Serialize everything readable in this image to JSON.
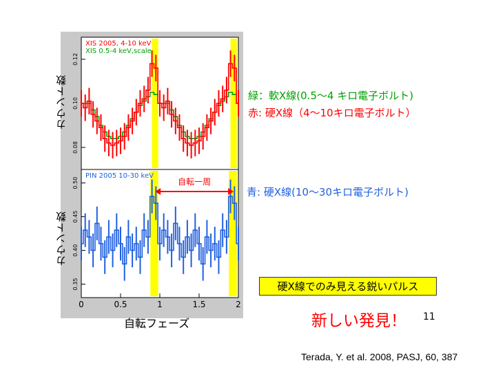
{
  "slide": {
    "ylabel_top": "カウント数",
    "ylabel_bottom": "カウント数",
    "xlabel": "自転フェーズ",
    "annotation_green": "緑：軟X線(0.5～4 キロ電子ボルト)",
    "annotation_red": "赤:  硬X線（4～10キロ電子ボルト）",
    "annotation_blue": "青:  硬X線(10～30キロ電子ボルト)",
    "rotation_label": "自転一周",
    "pulse_box": "硬X線でのみ見える鋭いパルス",
    "discovery": "新しい発見！",
    "page_number": "11",
    "citation": "Terada, Y. et al. 2008, PASJ, 60, 387"
  },
  "colors": {
    "green": "#00a000",
    "red": "#ff0000",
    "blue": "#1f5fe0",
    "highlight": "#ffff00",
    "panel_bg": "#c9c9c9"
  },
  "chart_data": [
    {
      "type": "line",
      "legend": [
        "XIS 2005, 4-10 keV",
        "XIS 0.5-4 keV,scale"
      ],
      "legend_colors": [
        "#ff0000",
        "#00a000"
      ],
      "yticks": [
        "0.12",
        "0.10",
        "0.08"
      ],
      "ylim": [
        0.07,
        0.13
      ],
      "xlim": [
        0,
        2
      ],
      "highlight_phases": [
        [
          0.9,
          0.98
        ],
        [
          1.9,
          1.98
        ]
      ],
      "series": [
        {
          "color": "#00a000",
          "x": [
            0,
            0.05,
            0.1,
            0.15,
            0.2,
            0.25,
            0.3,
            0.35,
            0.4,
            0.45,
            0.5,
            0.55,
            0.6,
            0.65,
            0.7,
            0.75,
            0.8,
            0.85,
            0.9,
            0.95,
            1.0,
            1.05,
            1.1,
            1.15,
            1.2,
            1.25,
            1.3,
            1.35,
            1.4,
            1.45,
            1.5,
            1.55,
            1.6,
            1.65,
            1.7,
            1.75,
            1.8,
            1.85,
            1.9,
            1.95,
            2.0
          ],
          "y": [
            0.1,
            0.1,
            0.1,
            0.097,
            0.094,
            0.09,
            0.087,
            0.085,
            0.084,
            0.084,
            0.085,
            0.087,
            0.09,
            0.093,
            0.096,
            0.099,
            0.101,
            0.103,
            0.105,
            0.104,
            0.1,
            0.1,
            0.1,
            0.097,
            0.094,
            0.09,
            0.087,
            0.085,
            0.084,
            0.084,
            0.085,
            0.087,
            0.09,
            0.093,
            0.096,
            0.099,
            0.101,
            0.103,
            0.105,
            0.104,
            0.1
          ]
        },
        {
          "color": "#ff0000",
          "x": [
            0,
            0.05,
            0.1,
            0.15,
            0.2,
            0.25,
            0.3,
            0.35,
            0.4,
            0.45,
            0.5,
            0.55,
            0.6,
            0.65,
            0.7,
            0.75,
            0.8,
            0.85,
            0.9,
            0.95,
            1.0,
            1.05,
            1.1,
            1.15,
            1.2,
            1.25,
            1.3,
            1.35,
            1.4,
            1.45,
            1.5,
            1.55,
            1.6,
            1.65,
            1.7,
            1.75,
            1.8,
            1.85,
            1.9,
            1.95,
            2.0
          ],
          "y": [
            0.1,
            0.098,
            0.101,
            0.095,
            0.092,
            0.089,
            0.084,
            0.082,
            0.081,
            0.082,
            0.083,
            0.085,
            0.089,
            0.092,
            0.096,
            0.1,
            0.102,
            0.106,
            0.118,
            0.116,
            0.1,
            0.098,
            0.101,
            0.095,
            0.092,
            0.089,
            0.084,
            0.082,
            0.081,
            0.082,
            0.083,
            0.085,
            0.089,
            0.092,
            0.096,
            0.1,
            0.102,
            0.106,
            0.118,
            0.116,
            0.1
          ],
          "error": 0.006
        }
      ]
    },
    {
      "type": "line",
      "legend": [
        "PIN 2005 10-30 keV"
      ],
      "legend_colors": [
        "#1f5fe0"
      ],
      "yticks": [
        "0.50",
        "0.45",
        "0.40",
        "0.35"
      ],
      "ylim": [
        0.33,
        0.52
      ],
      "xlim": [
        0,
        2
      ],
      "xticks": [
        "0",
        "0.5",
        "1",
        "1.5",
        "2"
      ],
      "highlight_phases": [
        [
          0.88,
          0.98
        ],
        [
          1.88,
          1.98
        ]
      ],
      "series": [
        {
          "color": "#1f5fe0",
          "x": [
            0,
            0.05,
            0.1,
            0.15,
            0.2,
            0.25,
            0.3,
            0.35,
            0.4,
            0.45,
            0.5,
            0.55,
            0.6,
            0.65,
            0.7,
            0.75,
            0.8,
            0.85,
            0.9,
            0.95,
            1.0,
            1.05,
            1.1,
            1.15,
            1.2,
            1.25,
            1.3,
            1.35,
            1.4,
            1.45,
            1.5,
            1.55,
            1.6,
            1.65,
            1.7,
            1.75,
            1.8,
            1.85,
            1.9,
            1.95,
            2.0
          ],
          "y": [
            0.41,
            0.43,
            0.42,
            0.4,
            0.44,
            0.41,
            0.39,
            0.42,
            0.4,
            0.43,
            0.41,
            0.38,
            0.42,
            0.4,
            0.41,
            0.39,
            0.43,
            0.42,
            0.48,
            0.47,
            0.41,
            0.43,
            0.42,
            0.4,
            0.44,
            0.41,
            0.39,
            0.42,
            0.4,
            0.43,
            0.41,
            0.38,
            0.42,
            0.4,
            0.41,
            0.39,
            0.43,
            0.42,
            0.48,
            0.47,
            0.41
          ],
          "error": 0.025
        }
      ]
    }
  ]
}
